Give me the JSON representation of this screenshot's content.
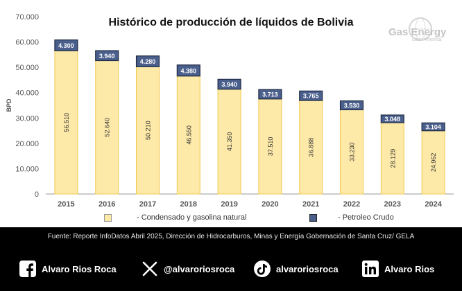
{
  "title": "Histórico de producción de líquidos de Bolivia",
  "logo": {
    "text": "Gas Energy",
    "subtext": "Latin America"
  },
  "chart_data": {
    "type": "bar",
    "stacked": true,
    "categories": [
      "2015",
      "2016",
      "2017",
      "2018",
      "2019",
      "2020",
      "2021",
      "2022",
      "2023",
      "2024"
    ],
    "series": [
      {
        "name": "- Condensado y gasolina natural",
        "color": "#fde9a8",
        "values": [
          56510,
          52640,
          50210,
          46550,
          41350,
          37510,
          36888,
          33230,
          28129,
          24962
        ],
        "labels": [
          "56.510",
          "52.640",
          "50.210",
          "46.550",
          "41.350",
          "37.510",
          "36.888",
          "33.230",
          "28.129",
          "24.962"
        ]
      },
      {
        "name": "- Petroleo Crudo",
        "color": "#4a5f8c",
        "values": [
          4300,
          3940,
          4280,
          4380,
          3940,
          3713,
          3765,
          3530,
          3048,
          3104
        ],
        "labels": [
          "4.300",
          "3.940",
          "4.280",
          "4.380",
          "3.940",
          "3.713",
          "3.765",
          "3.530",
          "3.048",
          "3.104"
        ]
      }
    ],
    "ylabel": "BPD",
    "ylim": [
      0,
      70000
    ],
    "yticks": [
      0,
      10000,
      20000,
      30000,
      40000,
      50000,
      60000,
      70000
    ],
    "ytick_labels": [
      "0",
      "10.000",
      "20.000",
      "30.000",
      "40.000",
      "50.000",
      "60.000",
      "70.000"
    ],
    "legend_position": "bottom",
    "grid": false
  },
  "source": "Fuente: Reporte InfoDatos Abril 2025, Dirección de Hidrocarburos, Minas y Energía Gobernación de Santa Cruz/ GELA",
  "social": [
    {
      "icon": "facebook-icon",
      "label": "Alvaro Rios Roca"
    },
    {
      "icon": "x-icon",
      "label": "@alvaroriosroca"
    },
    {
      "icon": "tiktok-icon",
      "label": "alvaroriosroca"
    },
    {
      "icon": "linkedin-icon",
      "label": "Alvaro Rios"
    }
  ]
}
